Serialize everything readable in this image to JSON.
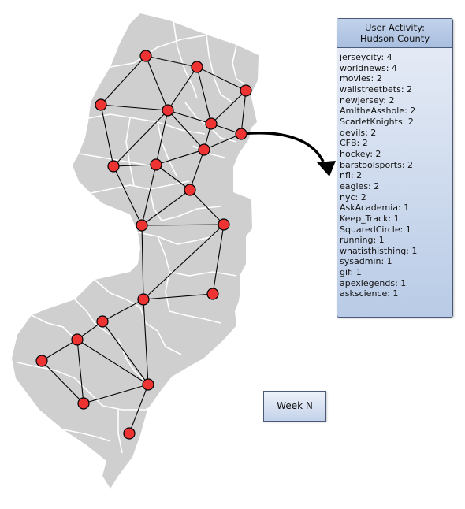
{
  "panel": {
    "title_line1": "User Activity:",
    "title_line2": "Hudson County",
    "items": [
      {
        "sub": "jerseycity",
        "count": 4
      },
      {
        "sub": "worldnews",
        "count": 4
      },
      {
        "sub": "movies",
        "count": 2
      },
      {
        "sub": "wallstreetbets",
        "count": 2
      },
      {
        "sub": "newjersey",
        "count": 2
      },
      {
        "sub": "AmItheAsshole",
        "count": 2
      },
      {
        "sub": "ScarletKnights",
        "count": 2
      },
      {
        "sub": "devils",
        "count": 2
      },
      {
        "sub": "CFB",
        "count": 2
      },
      {
        "sub": "hockey",
        "count": 2
      },
      {
        "sub": "barstoolsports",
        "count": 2
      },
      {
        "sub": "nfl",
        "count": 2
      },
      {
        "sub": "eagles",
        "count": 2
      },
      {
        "sub": "nyc",
        "count": 2
      },
      {
        "sub": "AskAcademia",
        "count": 1
      },
      {
        "sub": "Keep_Track",
        "count": 1
      },
      {
        "sub": "SquaredCircle",
        "count": 1
      },
      {
        "sub": "running",
        "count": 1
      },
      {
        "sub": "whatisthisthing",
        "count": 1
      },
      {
        "sub": "sysadmin",
        "count": 1
      },
      {
        "sub": "gif",
        "count": 1
      },
      {
        "sub": "apexlegends",
        "count": 1
      },
      {
        "sub": "askscience",
        "count": 1
      }
    ]
  },
  "week_label": "Week N",
  "colors": {
    "land": "#cfcfcf",
    "node": "#ee3333",
    "panel_border": "#4a5a78"
  }
}
